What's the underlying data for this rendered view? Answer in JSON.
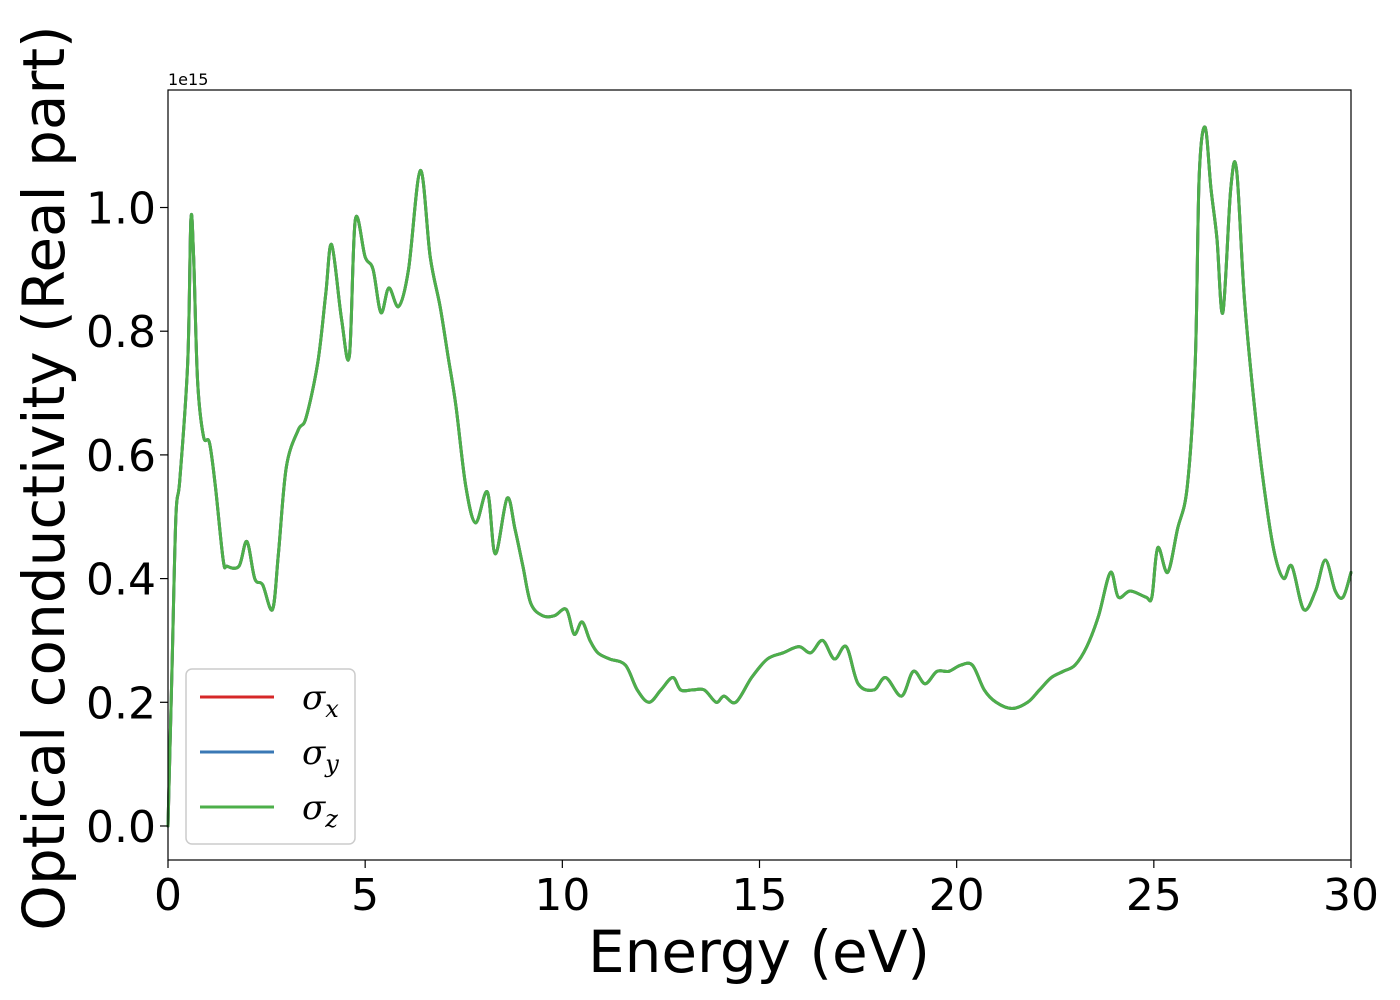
{
  "chart_data": {
    "type": "line",
    "title": "",
    "xlabel": "Energy (eV)",
    "ylabel": "Optical conductivity (Real part)",
    "y_offset_text": "1e15",
    "xlim": [
      0,
      30
    ],
    "ylim": [
      -0.055,
      1.19
    ],
    "y_scale_factor": 1000000000000000.0,
    "x_ticks": [
      0,
      5,
      10,
      15,
      20,
      25,
      30
    ],
    "x_tick_labels": [
      "0",
      "5",
      "10",
      "15",
      "20",
      "25",
      "30"
    ],
    "y_ticks": [
      0.0,
      0.2,
      0.4,
      0.6,
      0.8,
      1.0
    ],
    "y_tick_labels": [
      "0.0",
      "0.2",
      "0.4",
      "0.6",
      "0.8",
      "1.0"
    ],
    "grid": false,
    "legend_position": "lower-left",
    "legend": [
      {
        "symbol": "σ",
        "sub": "x",
        "color": "#d62728"
      },
      {
        "symbol": "σ",
        "sub": "y",
        "color": "#3a78b5"
      },
      {
        "symbol": "σ",
        "sub": "z",
        "color": "#4daf4a"
      }
    ],
    "series_note_shared_curve": true,
    "x": [
      0,
      0.1,
      0.2,
      0.3,
      0.5,
      0.58,
      0.65,
      0.75,
      0.9,
      1.05,
      1.2,
      1.4,
      1.5,
      1.8,
      2.0,
      2.2,
      2.4,
      2.65,
      2.8,
      3.0,
      3.3,
      3.5,
      3.8,
      4.0,
      4.15,
      4.4,
      4.6,
      4.75,
      5.0,
      5.2,
      5.4,
      5.6,
      5.85,
      6.1,
      6.4,
      6.65,
      6.9,
      7.1,
      7.3,
      7.55,
      7.8,
      8.1,
      8.3,
      8.6,
      8.8,
      9.0,
      9.2,
      9.5,
      9.8,
      10.1,
      10.3,
      10.5,
      10.7,
      10.9,
      11.2,
      11.6,
      11.9,
      12.2,
      12.5,
      12.8,
      13.0,
      13.3,
      13.6,
      13.9,
      14.1,
      14.4,
      14.8,
      15.2,
      15.6,
      16.0,
      16.3,
      16.6,
      16.9,
      17.2,
      17.5,
      17.9,
      18.2,
      18.6,
      18.9,
      19.2,
      19.5,
      19.8,
      20.1,
      20.4,
      20.7,
      21.0,
      21.4,
      21.8,
      22.1,
      22.4,
      22.7,
      23.0,
      23.3,
      23.6,
      23.9,
      24.1,
      24.4,
      24.8,
      24.95,
      25.1,
      25.35,
      25.6,
      25.85,
      26.05,
      26.15,
      26.3,
      26.45,
      26.6,
      26.75,
      26.95,
      27.1,
      27.3,
      27.6,
      27.9,
      28.1,
      28.3,
      28.5,
      28.8,
      29.1,
      29.35,
      29.6,
      29.8,
      30.0
    ],
    "series": [
      {
        "name": "σx",
        "values": [
          0.0,
          0.25,
          0.5,
          0.56,
          0.75,
          0.98,
          0.92,
          0.72,
          0.63,
          0.62,
          0.55,
          0.43,
          0.42,
          0.42,
          0.46,
          0.4,
          0.39,
          0.35,
          0.44,
          0.58,
          0.64,
          0.66,
          0.75,
          0.86,
          0.94,
          0.82,
          0.76,
          0.98,
          0.92,
          0.9,
          0.83,
          0.87,
          0.84,
          0.9,
          1.06,
          0.92,
          0.84,
          0.76,
          0.68,
          0.55,
          0.49,
          0.54,
          0.44,
          0.53,
          0.48,
          0.42,
          0.36,
          0.34,
          0.34,
          0.35,
          0.31,
          0.33,
          0.3,
          0.28,
          0.27,
          0.26,
          0.22,
          0.2,
          0.22,
          0.24,
          0.22,
          0.22,
          0.22,
          0.2,
          0.21,
          0.2,
          0.24,
          0.27,
          0.28,
          0.29,
          0.28,
          0.3,
          0.27,
          0.29,
          0.23,
          0.22,
          0.24,
          0.21,
          0.25,
          0.23,
          0.25,
          0.25,
          0.26,
          0.26,
          0.22,
          0.2,
          0.19,
          0.2,
          0.22,
          0.24,
          0.25,
          0.26,
          0.29,
          0.34,
          0.41,
          0.37,
          0.38,
          0.37,
          0.37,
          0.45,
          0.41,
          0.48,
          0.55,
          0.75,
          1.05,
          1.13,
          1.03,
          0.95,
          0.83,
          1.03,
          1.06,
          0.85,
          0.65,
          0.5,
          0.43,
          0.4,
          0.42,
          0.35,
          0.38,
          0.43,
          0.38,
          0.37,
          0.41
        ]
      },
      {
        "name": "σy",
        "values": [
          0.0,
          0.25,
          0.5,
          0.56,
          0.75,
          0.98,
          0.92,
          0.72,
          0.63,
          0.62,
          0.55,
          0.43,
          0.42,
          0.42,
          0.46,
          0.4,
          0.39,
          0.35,
          0.44,
          0.58,
          0.64,
          0.66,
          0.75,
          0.86,
          0.94,
          0.82,
          0.76,
          0.98,
          0.92,
          0.9,
          0.83,
          0.87,
          0.84,
          0.9,
          1.06,
          0.92,
          0.84,
          0.76,
          0.68,
          0.55,
          0.49,
          0.54,
          0.44,
          0.53,
          0.48,
          0.42,
          0.36,
          0.34,
          0.34,
          0.35,
          0.31,
          0.33,
          0.3,
          0.28,
          0.27,
          0.26,
          0.22,
          0.2,
          0.22,
          0.24,
          0.22,
          0.22,
          0.22,
          0.2,
          0.21,
          0.2,
          0.24,
          0.27,
          0.28,
          0.29,
          0.28,
          0.3,
          0.27,
          0.29,
          0.23,
          0.22,
          0.24,
          0.21,
          0.25,
          0.23,
          0.25,
          0.25,
          0.26,
          0.26,
          0.22,
          0.2,
          0.19,
          0.2,
          0.22,
          0.24,
          0.25,
          0.26,
          0.29,
          0.34,
          0.41,
          0.37,
          0.38,
          0.37,
          0.37,
          0.45,
          0.41,
          0.48,
          0.55,
          0.75,
          1.05,
          1.13,
          1.03,
          0.95,
          0.83,
          1.03,
          1.06,
          0.85,
          0.65,
          0.5,
          0.43,
          0.4,
          0.42,
          0.35,
          0.38,
          0.43,
          0.38,
          0.37,
          0.41
        ]
      },
      {
        "name": "σz",
        "values": [
          0.0,
          0.25,
          0.5,
          0.56,
          0.75,
          0.98,
          0.92,
          0.72,
          0.63,
          0.62,
          0.55,
          0.43,
          0.42,
          0.42,
          0.46,
          0.4,
          0.39,
          0.35,
          0.44,
          0.58,
          0.64,
          0.66,
          0.75,
          0.86,
          0.94,
          0.82,
          0.76,
          0.98,
          0.92,
          0.9,
          0.83,
          0.87,
          0.84,
          0.9,
          1.06,
          0.92,
          0.84,
          0.76,
          0.68,
          0.55,
          0.49,
          0.54,
          0.44,
          0.53,
          0.48,
          0.42,
          0.36,
          0.34,
          0.34,
          0.35,
          0.31,
          0.33,
          0.3,
          0.28,
          0.27,
          0.26,
          0.22,
          0.2,
          0.22,
          0.24,
          0.22,
          0.22,
          0.22,
          0.2,
          0.21,
          0.2,
          0.24,
          0.27,
          0.28,
          0.29,
          0.28,
          0.3,
          0.27,
          0.29,
          0.23,
          0.22,
          0.24,
          0.21,
          0.25,
          0.23,
          0.25,
          0.25,
          0.26,
          0.26,
          0.22,
          0.2,
          0.19,
          0.2,
          0.22,
          0.24,
          0.25,
          0.26,
          0.29,
          0.34,
          0.41,
          0.37,
          0.38,
          0.37,
          0.37,
          0.45,
          0.41,
          0.48,
          0.55,
          0.75,
          1.05,
          1.13,
          1.03,
          0.95,
          0.83,
          1.03,
          1.06,
          0.85,
          0.65,
          0.5,
          0.43,
          0.4,
          0.42,
          0.35,
          0.38,
          0.43,
          0.38,
          0.37,
          0.41
        ]
      }
    ]
  }
}
